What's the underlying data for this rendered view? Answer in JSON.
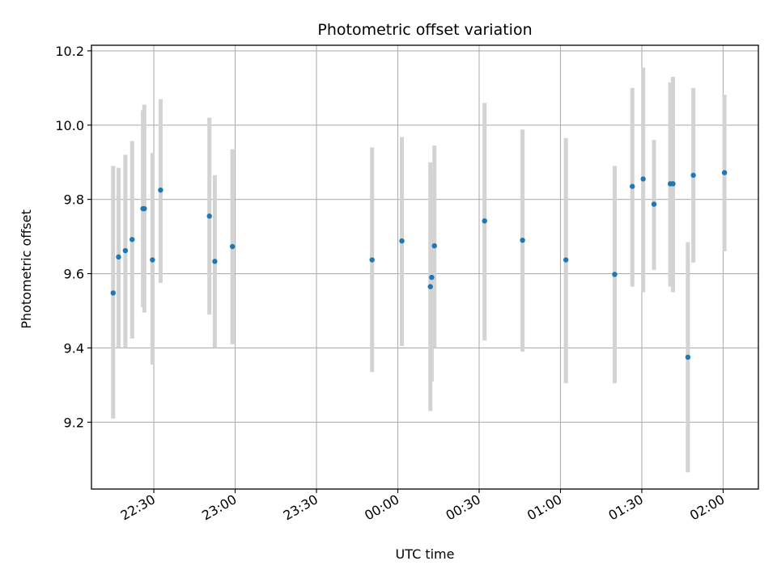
{
  "chart_data": {
    "type": "scatter",
    "title": "Photometric offset variation",
    "xlabel": "UTC time",
    "ylabel": "Photometric offset",
    "x_is_time": true,
    "xlim": [
      "22:07",
      "02:13"
    ],
    "ylim": [
      9.02,
      10.215
    ],
    "xticks": [
      "22:30",
      "23:00",
      "23:30",
      "00:00",
      "00:30",
      "01:00",
      "01:30",
      "02:00"
    ],
    "yticks": [
      9.2,
      9.4,
      9.6,
      9.8,
      10.0,
      10.2
    ],
    "ytick_labels": [
      "9.2",
      "9.4",
      "9.6",
      "9.8",
      "10.0",
      "10.2"
    ],
    "grid": true,
    "colors": {
      "point": "#1f77b4",
      "errorbar": "#d3d3d3",
      "grid": "#b0b0b0"
    },
    "points": [
      {
        "t": "22:15:00",
        "y": 9.548,
        "lo": 9.21,
        "hi": 9.89
      },
      {
        "t": "22:17:00",
        "y": 9.645,
        "lo": 9.4,
        "hi": 9.885
      },
      {
        "t": "22:19:30",
        "y": 9.662,
        "lo": 9.4,
        "hi": 9.92
      },
      {
        "t": "22:22:00",
        "y": 9.692,
        "lo": 9.425,
        "hi": 9.957
      },
      {
        "t": "22:26:00",
        "y": 9.775,
        "lo": 9.51,
        "hi": 10.04
      },
      {
        "t": "22:26:30",
        "y": 9.775,
        "lo": 9.495,
        "hi": 10.055
      },
      {
        "t": "22:29:30",
        "y": 9.637,
        "lo": 9.355,
        "hi": 9.925
      },
      {
        "t": "22:32:30",
        "y": 9.825,
        "lo": 9.575,
        "hi": 10.07
      },
      {
        "t": "22:50:30",
        "y": 9.755,
        "lo": 9.49,
        "hi": 10.02
      },
      {
        "t": "22:52:30",
        "y": 9.633,
        "lo": 9.4,
        "hi": 9.865
      },
      {
        "t": "22:59:00",
        "y": 9.673,
        "lo": 9.41,
        "hi": 9.935
      },
      {
        "t": "23:50:30",
        "y": 9.637,
        "lo": 9.335,
        "hi": 9.94
      },
      {
        "t": "00:01:30",
        "y": 9.688,
        "lo": 9.405,
        "hi": 9.968
      },
      {
        "t": "00:12:00",
        "y": 9.565,
        "lo": 9.23,
        "hi": 9.9
      },
      {
        "t": "00:12:30",
        "y": 9.59,
        "lo": 9.31,
        "hi": 9.865
      },
      {
        "t": "00:13:30",
        "y": 9.675,
        "lo": 9.4,
        "hi": 9.945
      },
      {
        "t": "00:32:00",
        "y": 9.742,
        "lo": 9.42,
        "hi": 10.06
      },
      {
        "t": "00:46:00",
        "y": 9.69,
        "lo": 9.39,
        "hi": 9.988
      },
      {
        "t": "01:02:00",
        "y": 9.637,
        "lo": 9.305,
        "hi": 9.965
      },
      {
        "t": "01:20:00",
        "y": 9.598,
        "lo": 9.305,
        "hi": 9.89
      },
      {
        "t": "01:26:30",
        "y": 9.835,
        "lo": 9.565,
        "hi": 10.1
      },
      {
        "t": "01:30:30",
        "y": 9.855,
        "lo": 9.55,
        "hi": 10.155
      },
      {
        "t": "01:34:30",
        "y": 9.787,
        "lo": 9.61,
        "hi": 9.96
      },
      {
        "t": "01:40:30",
        "y": 9.842,
        "lo": 9.565,
        "hi": 10.115
      },
      {
        "t": "01:41:30",
        "y": 9.842,
        "lo": 9.55,
        "hi": 10.13
      },
      {
        "t": "01:47:00",
        "y": 9.375,
        "lo": 9.065,
        "hi": 9.685
      },
      {
        "t": "01:49:00",
        "y": 9.865,
        "lo": 9.63,
        "hi": 10.1
      },
      {
        "t": "02:00:30",
        "y": 9.872,
        "lo": 9.66,
        "hi": 10.082
      }
    ]
  }
}
